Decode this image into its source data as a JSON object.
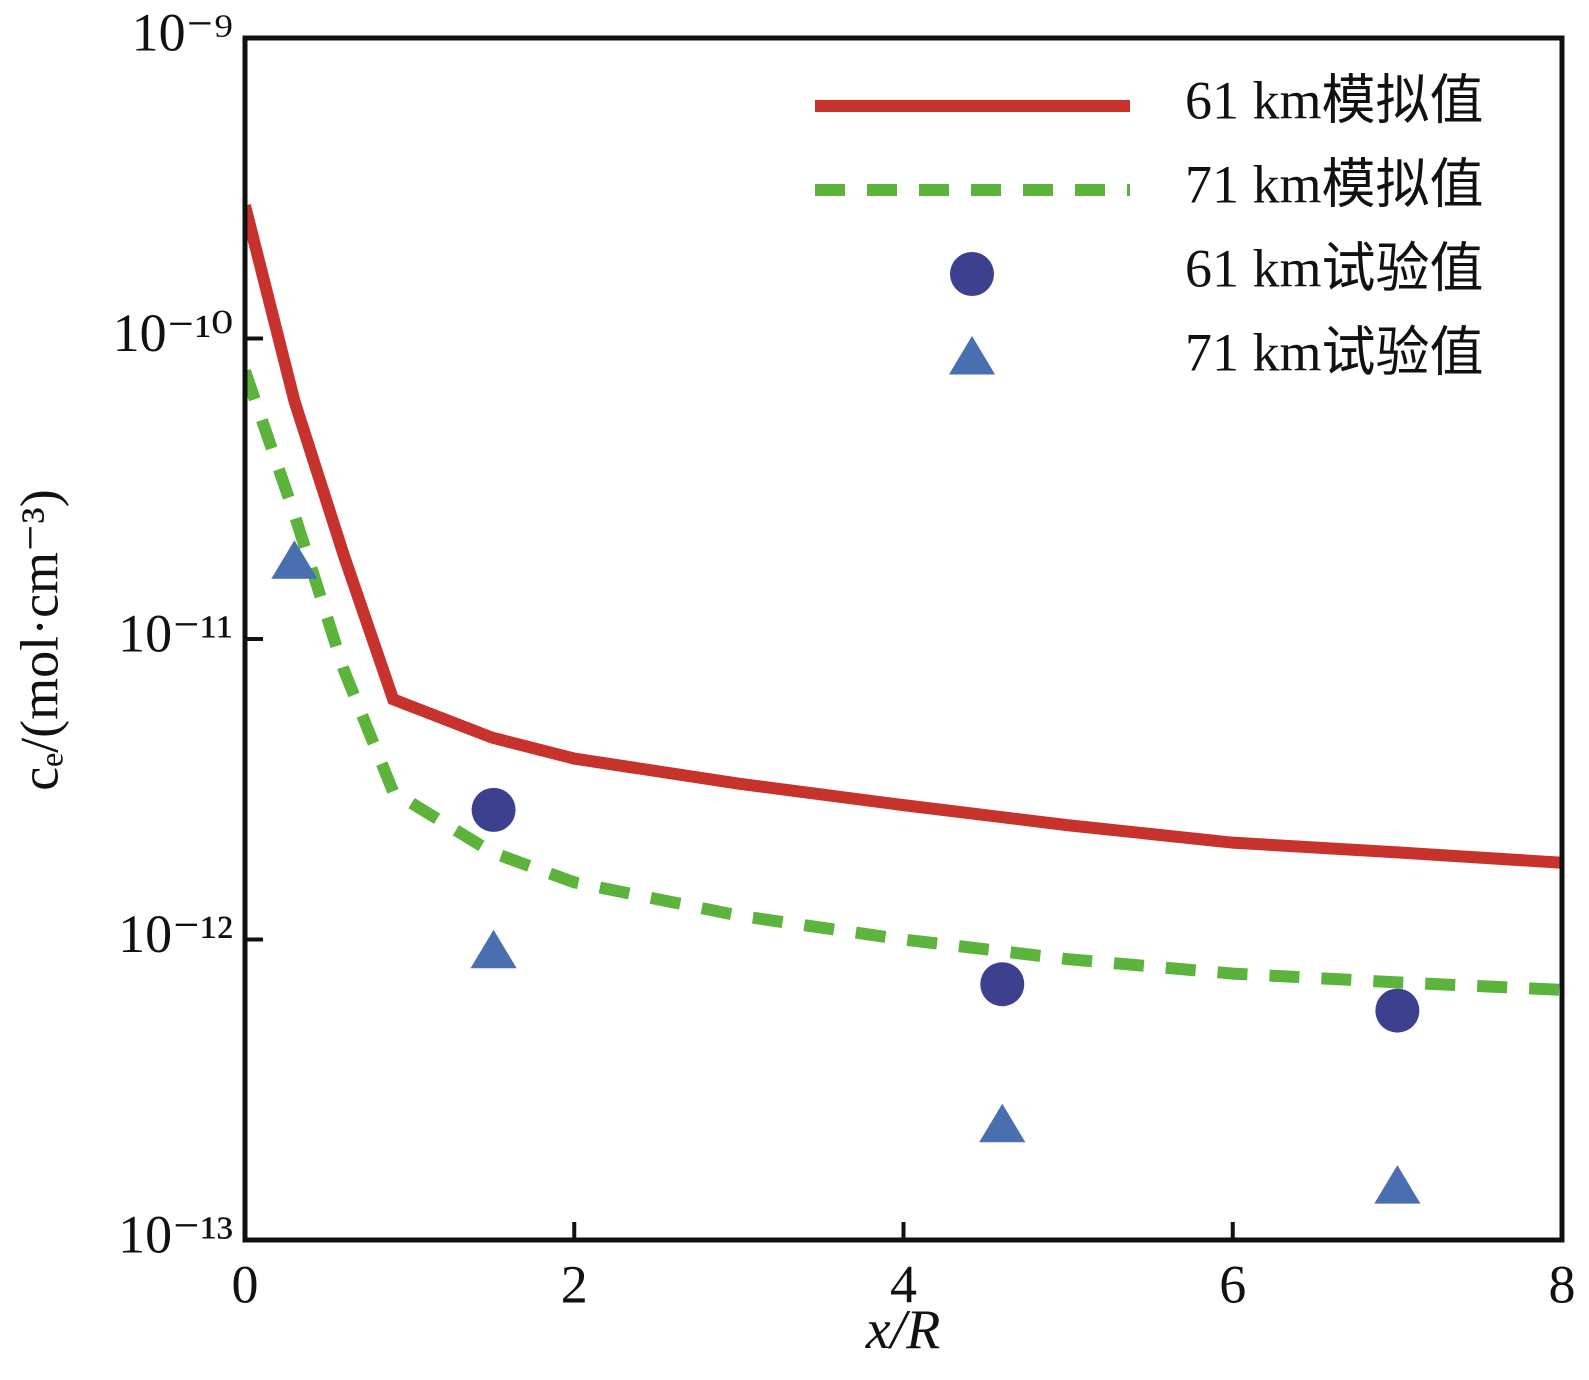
{
  "chart_data": {
    "type": "line",
    "xlabel": "x/R",
    "ylabel": "cₑ/(mol·cm⁻³)",
    "xlim": [
      0,
      8
    ],
    "xticks": [
      0,
      2,
      4,
      6,
      8
    ],
    "ylim": [
      1e-13,
      1e-09
    ],
    "yscale": "log",
    "yticks": [
      {
        "value": 1e-13,
        "label": "10⁻¹³"
      },
      {
        "value": 1e-12,
        "label": "10⁻¹²"
      },
      {
        "value": 1e-11,
        "label": "10⁻¹¹"
      },
      {
        "value": 1e-10,
        "label": "10⁻¹⁰"
      },
      {
        "value": 1e-09,
        "label": "10⁻⁹"
      }
    ],
    "legend": "upper right",
    "series": [
      {
        "name": "61 km模拟值",
        "color": "#c8322d",
        "mode": "line",
        "dash": false,
        "x": [
          0,
          0.3,
          0.6,
          0.9,
          1.5,
          2,
          3,
          4,
          5,
          6,
          7,
          8
        ],
        "values": [
          2.77e-10,
          6.2e-11,
          1.9e-11,
          6.3e-12,
          4.7e-12,
          4e-12,
          3.3e-12,
          2.8e-12,
          2.4e-12,
          2.1e-12,
          1.95e-12,
          1.8e-12
        ]
      },
      {
        "name": "71 km模拟值",
        "color": "#5cb43c",
        "mode": "line",
        "dash": true,
        "x": [
          0,
          0.3,
          0.6,
          0.9,
          1.5,
          2,
          3,
          4,
          5,
          6,
          7,
          8
        ],
        "values": [
          7.8e-11,
          2.6e-11,
          7.9e-12,
          3.1e-12,
          1.95e-12,
          1.55e-12,
          1.2e-12,
          1e-12,
          8.6e-13,
          7.7e-13,
          7.2e-13,
          6.8e-13
        ]
      },
      {
        "name": "61 km试验值",
        "color": "#3d3f8f",
        "mode": "markers",
        "marker": "circle",
        "x": [
          1.51,
          4.6,
          7.0
        ],
        "values": [
          2.7e-12,
          7.1e-13,
          5.8e-13
        ]
      },
      {
        "name": "71 km试验值",
        "color": "#4a6fb0",
        "mode": "markers",
        "marker": "triangle",
        "x": [
          0.3,
          1.51,
          4.6,
          7.0
        ],
        "values": [
          1.8e-11,
          9.1e-13,
          2.4e-13,
          1.5e-13
        ]
      }
    ]
  }
}
